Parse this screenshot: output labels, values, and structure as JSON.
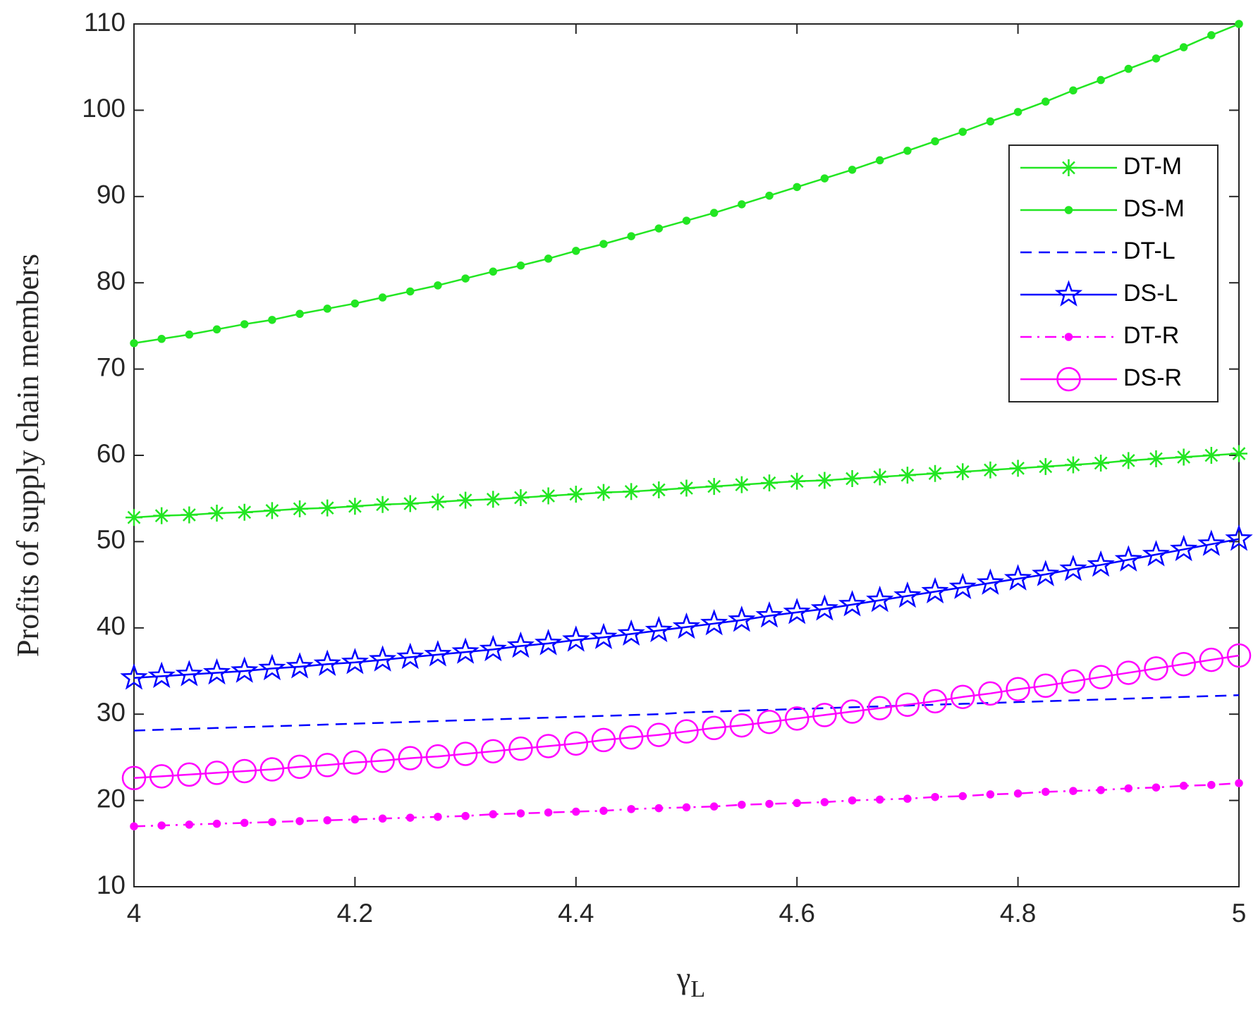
{
  "chart_data": {
    "type": "line",
    "x_label": "γ",
    "x_label_subscript": "L",
    "y_label": "Profits of supply chain members",
    "x": [
      4,
      4.025,
      4.05,
      4.075,
      4.1,
      4.125,
      4.15,
      4.175,
      4.2,
      4.225,
      4.25,
      4.275,
      4.3,
      4.325,
      4.35,
      4.375,
      4.4,
      4.425,
      4.45,
      4.475,
      4.5,
      4.525,
      4.55,
      4.575,
      4.6,
      4.625,
      4.65,
      4.675,
      4.7,
      4.725,
      4.75,
      4.775,
      4.8,
      4.825,
      4.85,
      4.875,
      4.9,
      4.925,
      4.95,
      4.975,
      5
    ],
    "series": [
      {
        "name": "DT-M",
        "color": "#22e622",
        "linestyle": "solid",
        "marker": "asterisk",
        "values": [
          52.8,
          53.0,
          53.1,
          53.3,
          53.4,
          53.6,
          53.8,
          53.9,
          54.1,
          54.3,
          54.4,
          54.6,
          54.8,
          54.9,
          55.1,
          55.3,
          55.5,
          55.7,
          55.8,
          56.0,
          56.2,
          56.4,
          56.6,
          56.8,
          57.0,
          57.1,
          57.3,
          57.5,
          57.7,
          57.9,
          58.1,
          58.3,
          58.5,
          58.7,
          58.9,
          59.1,
          59.4,
          59.6,
          59.8,
          60.0,
          60.2
        ]
      },
      {
        "name": "DS-M",
        "color": "#22e622",
        "linestyle": "solid",
        "marker": "dot",
        "values": [
          73.0,
          73.5,
          74.0,
          74.6,
          75.2,
          75.7,
          76.4,
          77.0,
          77.6,
          78.3,
          79.0,
          79.7,
          80.5,
          81.3,
          82.0,
          82.8,
          83.7,
          84.5,
          85.4,
          86.3,
          87.2,
          88.1,
          89.1,
          90.1,
          91.1,
          92.1,
          93.1,
          94.2,
          95.3,
          96.4,
          97.5,
          98.7,
          99.8,
          101.0,
          102.3,
          103.5,
          104.8,
          106.0,
          107.3,
          108.7,
          110.0
        ]
      },
      {
        "name": "DT-L",
        "color": "#0000ff",
        "linestyle": "dashed",
        "marker": "none",
        "values": [
          28.1,
          28.2,
          28.3,
          28.4,
          28.5,
          28.6,
          28.7,
          28.8,
          28.9,
          29.0,
          29.1,
          29.2,
          29.3,
          29.4,
          29.5,
          29.6,
          29.7,
          29.8,
          29.9,
          30.0,
          30.2,
          30.3,
          30.4,
          30.5,
          30.6,
          30.7,
          30.8,
          30.9,
          31.0,
          31.1,
          31.2,
          31.3,
          31.4,
          31.5,
          31.6,
          31.7,
          31.8,
          31.9,
          32.0,
          32.1,
          32.2
        ]
      },
      {
        "name": "DS-L",
        "color": "#0000ff",
        "linestyle": "solid",
        "marker": "star",
        "values": [
          34.2,
          34.4,
          34.6,
          34.8,
          35.0,
          35.3,
          35.5,
          35.8,
          36.0,
          36.3,
          36.6,
          36.9,
          37.2,
          37.5,
          37.9,
          38.2,
          38.6,
          38.9,
          39.3,
          39.7,
          40.1,
          40.5,
          40.9,
          41.4,
          41.8,
          42.2,
          42.7,
          43.2,
          43.7,
          44.2,
          44.7,
          45.2,
          45.7,
          46.2,
          46.8,
          47.3,
          47.9,
          48.5,
          49.1,
          49.7,
          50.3
        ]
      },
      {
        "name": "DT-R",
        "color": "#ff00ff",
        "linestyle": "dashdot",
        "marker": "dot",
        "values": [
          17.0,
          17.1,
          17.2,
          17.3,
          17.4,
          17.5,
          17.6,
          17.7,
          17.8,
          17.9,
          18.0,
          18.1,
          18.2,
          18.4,
          18.5,
          18.6,
          18.7,
          18.8,
          19.0,
          19.1,
          19.2,
          19.3,
          19.5,
          19.6,
          19.7,
          19.8,
          20.0,
          20.1,
          20.2,
          20.4,
          20.5,
          20.7,
          20.8,
          21.0,
          21.1,
          21.2,
          21.4,
          21.5,
          21.7,
          21.8,
          22.0
        ]
      },
      {
        "name": "DS-R",
        "color": "#ff00ff",
        "linestyle": "solid",
        "marker": "circle",
        "values": [
          22.6,
          22.8,
          23.0,
          23.2,
          23.4,
          23.6,
          23.9,
          24.1,
          24.4,
          24.6,
          24.9,
          25.1,
          25.4,
          25.7,
          26.0,
          26.3,
          26.6,
          27.0,
          27.3,
          27.6,
          28.0,
          28.4,
          28.7,
          29.1,
          29.5,
          29.9,
          30.3,
          30.7,
          31.1,
          31.5,
          32.0,
          32.4,
          32.9,
          33.3,
          33.8,
          34.3,
          34.8,
          35.3,
          35.8,
          36.3,
          36.8
        ]
      }
    ],
    "xlim": [
      4,
      5
    ],
    "xticks": [
      4,
      4.2,
      4.4,
      4.6,
      4.8,
      5
    ],
    "ylim": [
      10,
      110
    ],
    "yticks": [
      10,
      20,
      30,
      40,
      50,
      60,
      70,
      80,
      90,
      100,
      110
    ],
    "grid": false,
    "legend": "northeast"
  }
}
